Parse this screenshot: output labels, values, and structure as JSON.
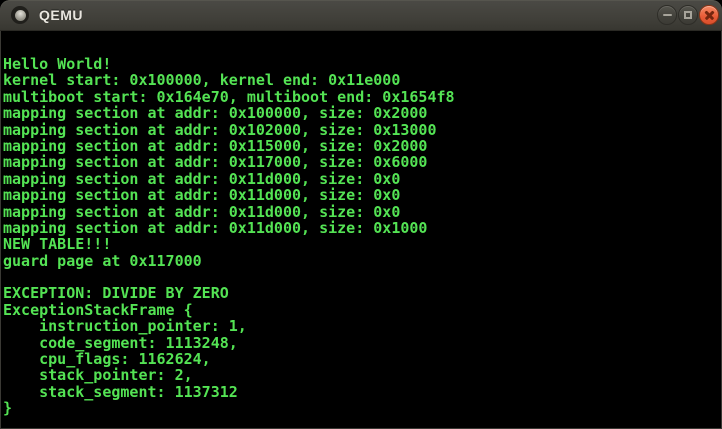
{
  "window": {
    "title": "QEMU",
    "icon": "qemu-window-icon",
    "control_icons": [
      "minimize-icon",
      "maximize-icon",
      "close-icon"
    ]
  },
  "colors": {
    "titlebar_bg": "#403F39",
    "titlebar_text": "#E9E6DF",
    "terminal_bg": "#000000",
    "terminal_green": "#54E354",
    "close_button_orange": "#E85B37"
  },
  "terminal": {
    "lines": [
      "Hello World!",
      "kernel start: 0x100000, kernel end: 0x11e000",
      "multiboot start: 0x164e70, multiboot end: 0x1654f8",
      "mapping section at addr: 0x100000, size: 0x2000",
      "mapping section at addr: 0x102000, size: 0x13000",
      "mapping section at addr: 0x115000, size: 0x2000",
      "mapping section at addr: 0x117000, size: 0x6000",
      "mapping section at addr: 0x11d000, size: 0x0",
      "mapping section at addr: 0x11d000, size: 0x0",
      "mapping section at addr: 0x11d000, size: 0x0",
      "mapping section at addr: 0x11d000, size: 0x1000",
      "NEW TABLE!!!",
      "guard page at 0x117000",
      "",
      "EXCEPTION: DIVIDE BY ZERO",
      "ExceptionStackFrame {",
      "    instruction_pointer: 1,",
      "    code_segment: 1113248,",
      "    cpu_flags: 1162624,",
      "    stack_pointer: 2,",
      "    stack_segment: 1137312",
      "}"
    ]
  }
}
